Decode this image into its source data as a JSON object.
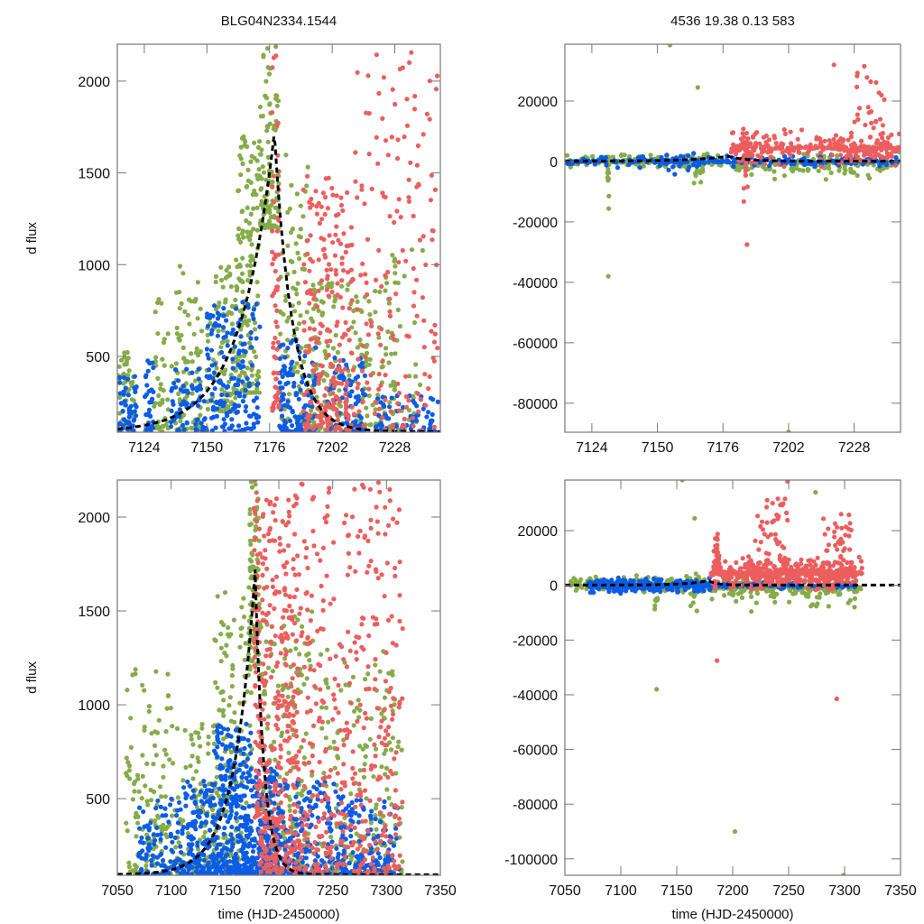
{
  "titles": {
    "left": "BLG04N2334.1544",
    "right": "4536  19.38  0.13  583"
  },
  "colors": {
    "series_green": "#86ac4a",
    "series_blue": "#0b5ce6",
    "series_red": "#ec5e5e",
    "model": "#000000",
    "frame": "#777777"
  },
  "chart_data": [
    {
      "id": "top-left",
      "type": "scatter",
      "title": "BLG04N2334.1544",
      "xlabel": "",
      "ylabel": "d flux",
      "xlim": [
        7112.8,
        7246.9
      ],
      "ylim": [
        87,
        2201
      ],
      "xticks": [
        7124,
        7150,
        7176,
        7202,
        7228
      ],
      "yticks": [
        500,
        1000,
        1500,
        2000
      ],
      "grid": false,
      "model": {
        "type": "peak",
        "t0": 7178,
        "peak": 1720,
        "base": 90,
        "rise": 14,
        "fall": 7.5
      },
      "series": [
        {
          "name": "green",
          "color": "#86ac4a",
          "clusters": [
            [
              7113,
              7120,
              80,
              550,
              60
            ],
            [
              7128,
              7134,
              90,
              900,
              40
            ],
            [
              7135,
              7148,
              100,
              1000,
              90
            ],
            [
              7150,
              7162,
              200,
              1000,
              100
            ],
            [
              7162,
              7172,
              300,
              1700,
              160
            ],
            [
              7172,
              7180,
              1200,
              2200,
              110
            ],
            [
              7180,
              7192,
              150,
              1600,
              90
            ],
            [
              7192,
              7206,
              100,
              900,
              120
            ],
            [
              7208,
              7224,
              100,
              900,
              90
            ],
            [
              7224,
              7240,
              100,
              1100,
              60
            ]
          ]
        },
        {
          "name": "blue",
          "color": "#0b5ce6",
          "clusters": [
            [
              7113,
              7121,
              90,
              400,
              50
            ],
            [
              7124,
              7128,
              90,
              500,
              35
            ],
            [
              7135,
              7150,
              90,
              450,
              70
            ],
            [
              7150,
              7172,
              90,
              800,
              160
            ],
            [
              7180,
              7196,
              90,
              600,
              120
            ],
            [
              7200,
              7216,
              90,
              500,
              90
            ],
            [
              7220,
              7246,
              90,
              300,
              70
            ]
          ]
        },
        {
          "name": "red",
          "color": "#ec5e5e",
          "clusters": [
            [
              7177,
              7180,
              200,
              2200,
              60
            ],
            [
              7190,
              7210,
              100,
              1500,
              220
            ],
            [
              7210,
              7246,
              100,
              2200,
              170
            ]
          ]
        }
      ]
    },
    {
      "id": "top-right",
      "type": "scatter",
      "title": "4536  19.38  0.13  583",
      "xlabel": "",
      "ylabel": "",
      "xlim": [
        7113.3,
        7246.4
      ],
      "ylim": [
        -89600,
        38800
      ],
      "xticks": [
        7124,
        7150,
        7176,
        7202,
        7228
      ],
      "yticks": [
        -80000,
        -60000,
        -40000,
        -20000,
        0,
        20000
      ],
      "grid": false,
      "model": {
        "type": "peak",
        "t0": 7178,
        "peak": 1720,
        "base": 90,
        "rise": 14,
        "fall": 7.5
      },
      "series": [
        {
          "name": "green",
          "color": "#86ac4a",
          "clusters": [
            [
              7113,
              7178,
              -3000,
              3000,
              180
            ],
            [
              7178,
              7246,
              -8000,
              6000,
              160
            ],
            [
              7130,
              7131,
              -19000,
              7000,
              10
            ],
            [
              7164,
              7168,
              -13000,
              7000,
              18
            ]
          ]
        },
        {
          "name": "blue",
          "color": "#0b5ce6",
          "clusters": [
            [
              7113,
              7246,
              -2500,
              2500,
              260
            ],
            [
              7150,
              7166,
              -6000,
              6000,
              18
            ]
          ]
        },
        {
          "name": "red",
          "color": "#ec5e5e",
          "clusters": [
            [
              7179,
              7246,
              -3000,
              12000,
              300
            ],
            [
              7184,
              7186,
              -14000,
              22000,
              30
            ],
            [
              7226,
              7240,
              0,
              30000,
              40
            ]
          ]
        }
      ],
      "outliers": [
        {
          "series": "green",
          "x": 7130.5,
          "y": -38000
        },
        {
          "series": "green",
          "x": 7155,
          "y": 38500
        },
        {
          "series": "green",
          "x": 7166,
          "y": 24500
        },
        {
          "series": "red",
          "x": 7185.5,
          "y": -27500
        },
        {
          "series": "green",
          "x": 7202,
          "y": -89500
        },
        {
          "series": "red",
          "x": 7220,
          "y": 32000
        },
        {
          "series": "red",
          "x": 7232,
          "y": 31500
        }
      ]
    },
    {
      "id": "bottom-left",
      "type": "scatter",
      "title": "",
      "xlabel": "time (HJD-2450000)",
      "ylabel": "d flux",
      "xlim": [
        7050,
        7350
      ],
      "ylim": [
        92,
        2197
      ],
      "xticks": [
        7050,
        7100,
        7150,
        7200,
        7250,
        7300,
        7350
      ],
      "yticks": [
        500,
        1000,
        1500,
        2000
      ],
      "grid": false,
      "model": {
        "type": "peak",
        "t0": 7178,
        "peak": 1720,
        "base": 95,
        "rise": 19,
        "fall": 8
      },
      "series": [
        {
          "name": "green",
          "color": "#86ac4a",
          "clusters": [
            [
              7058,
              7100,
              95,
              1200,
              120
            ],
            [
              7100,
              7140,
              95,
              900,
              110
            ],
            [
              7140,
              7175,
              100,
              1600,
              170
            ],
            [
              7172,
              7182,
              1200,
              2200,
              90
            ],
            [
              7182,
              7232,
              95,
              1500,
              200
            ],
            [
              7232,
              7315,
              95,
              1300,
              180
            ]
          ]
        },
        {
          "name": "blue",
          "color": "#0b5ce6",
          "clusters": [
            [
              7070,
              7110,
              95,
              500,
              110
            ],
            [
              7110,
              7140,
              95,
              600,
              150
            ],
            [
              7140,
              7175,
              95,
              900,
              320
            ],
            [
              7175,
              7200,
              95,
              700,
              180
            ],
            [
              7200,
              7260,
              95,
              600,
              200
            ],
            [
              7260,
              7312,
              95,
              500,
              140
            ]
          ]
        },
        {
          "name": "red",
          "color": "#ec5e5e",
          "clusters": [
            [
              7177,
              7182,
              400,
              2200,
              60
            ],
            [
              7182,
              7215,
              100,
              2100,
              320
            ],
            [
              7215,
              7260,
              100,
              2200,
              200
            ],
            [
              7260,
              7315,
              100,
              2200,
              220
            ]
          ]
        }
      ]
    },
    {
      "id": "bottom-right",
      "type": "scatter",
      "title": "",
      "xlabel": "time (HJD-2450000)",
      "ylabel": "",
      "xlim": [
        7050,
        7350
      ],
      "ylim": [
        -106000,
        38500
      ],
      "xticks": [
        7050,
        7100,
        7150,
        7200,
        7250,
        7300,
        7350
      ],
      "yticks": [
        -100000,
        -80000,
        -60000,
        -40000,
        -20000,
        0,
        20000
      ],
      "grid": false,
      "model": {
        "type": "peak",
        "t0": 7178,
        "peak": 1720,
        "base": 95,
        "rise": 19,
        "fall": 8
      },
      "series": [
        {
          "name": "green",
          "color": "#86ac4a",
          "clusters": [
            [
              7055,
              7180,
              -3000,
              4000,
              220
            ],
            [
              7180,
              7315,
              -10000,
              8000,
              220
            ],
            [
              7130,
              7133,
              -18000,
              7000,
              10
            ],
            [
              7162,
              7168,
              -13000,
              7000,
              16
            ]
          ]
        },
        {
          "name": "blue",
          "color": "#0b5ce6",
          "clusters": [
            [
              7070,
              7180,
              -3000,
              3000,
              420
            ],
            [
              7180,
              7310,
              -1500,
              1500,
              160
            ]
          ]
        },
        {
          "name": "red",
          "color": "#ec5e5e",
          "clusters": [
            [
              7180,
              7316,
              -3000,
              12000,
              520
            ],
            [
              7183,
              7188,
              -5000,
              22000,
              50
            ],
            [
              7220,
              7250,
              0,
              32000,
              70
            ],
            [
              7280,
              7306,
              0,
              28000,
              60
            ]
          ]
        }
      ],
      "outliers": [
        {
          "series": "green",
          "x": 7132,
          "y": -38000
        },
        {
          "series": "green",
          "x": 7155,
          "y": 38500
        },
        {
          "series": "green",
          "x": 7166,
          "y": 24500
        },
        {
          "series": "red",
          "x": 7186,
          "y": -27500
        },
        {
          "series": "green",
          "x": 7202,
          "y": -90000
        },
        {
          "series": "red",
          "x": 7293,
          "y": -41500
        },
        {
          "series": "green",
          "x": 7299,
          "y": -106000
        },
        {
          "series": "red",
          "x": 7249,
          "y": 38000
        },
        {
          "series": "green",
          "x": 7274,
          "y": 34000
        }
      ]
    }
  ]
}
